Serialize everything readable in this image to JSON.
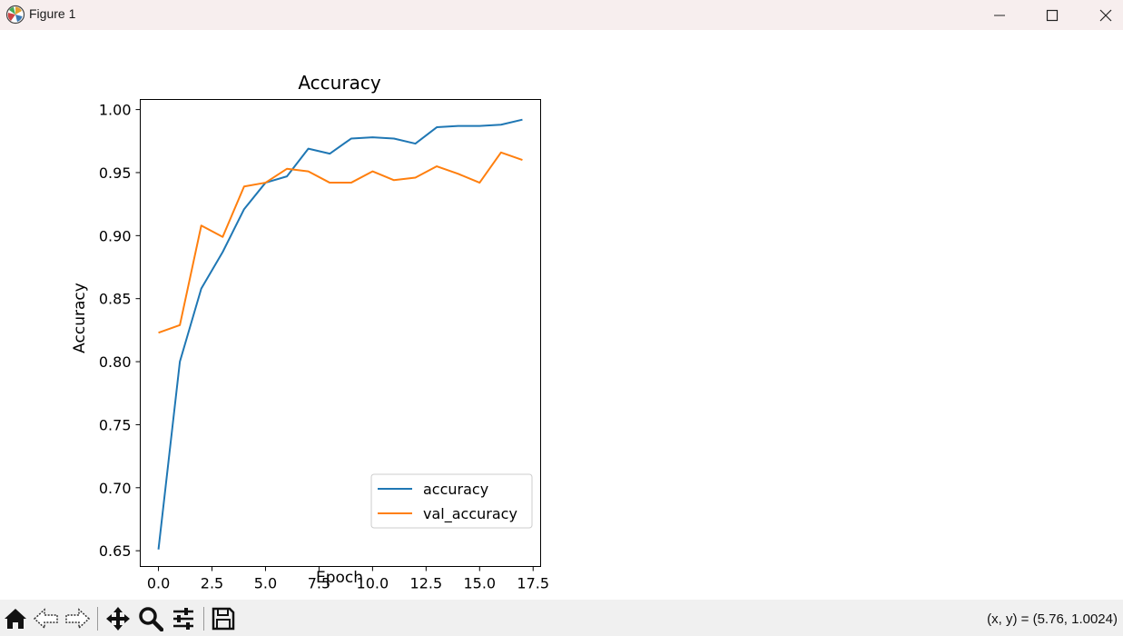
{
  "window": {
    "title": "Figure 1",
    "icon": "matplotlib-icon"
  },
  "toolbar": {
    "tools": [
      "home-icon",
      "back-arrow-icon",
      "forward-arrow-icon",
      "pan-icon",
      "zoom-icon",
      "configure-subplots-icon",
      "save-icon"
    ],
    "coordinates": "(x, y) = (5.76, 1.0024)"
  },
  "chart_data": {
    "type": "line",
    "title": "Accuracy",
    "xlabel": "Epoch",
    "ylabel": "Accuracy",
    "xlim": [
      -0.85,
      17.85
    ],
    "ylim": [
      0.6375,
      1.008
    ],
    "x_ticks": [
      0,
      2.5,
      5,
      7.5,
      10,
      12.5,
      15,
      17.5
    ],
    "x_tick_labels": [
      "0.0",
      "2.5",
      "5.0",
      "7.5",
      "10.0",
      "12.5",
      "15.0",
      "17.5"
    ],
    "y_ticks": [
      0.65,
      0.7,
      0.75,
      0.8,
      0.85,
      0.9,
      0.95,
      1.0
    ],
    "y_tick_labels": [
      "0.65",
      "0.70",
      "0.75",
      "0.80",
      "0.85",
      "0.90",
      "0.95",
      "1.00"
    ],
    "grid": false,
    "legend_position": "lower-right",
    "x": [
      0,
      1,
      2,
      3,
      4,
      5,
      6,
      7,
      8,
      9,
      10,
      11,
      12,
      13,
      14,
      15,
      16,
      17
    ],
    "series": [
      {
        "name": "accuracy",
        "color": "#1f77b4",
        "values": [
          0.651,
          0.8,
          0.858,
          0.887,
          0.921,
          0.942,
          0.947,
          0.969,
          0.965,
          0.977,
          0.978,
          0.977,
          0.973,
          0.986,
          0.987,
          0.987,
          0.988,
          0.992
        ]
      },
      {
        "name": "val_accuracy",
        "color": "#ff7f0e",
        "values": [
          0.823,
          0.829,
          0.908,
          0.899,
          0.939,
          0.942,
          0.953,
          0.951,
          0.942,
          0.942,
          0.951,
          0.944,
          0.946,
          0.955,
          0.949,
          0.942,
          0.966,
          0.96
        ]
      }
    ]
  }
}
